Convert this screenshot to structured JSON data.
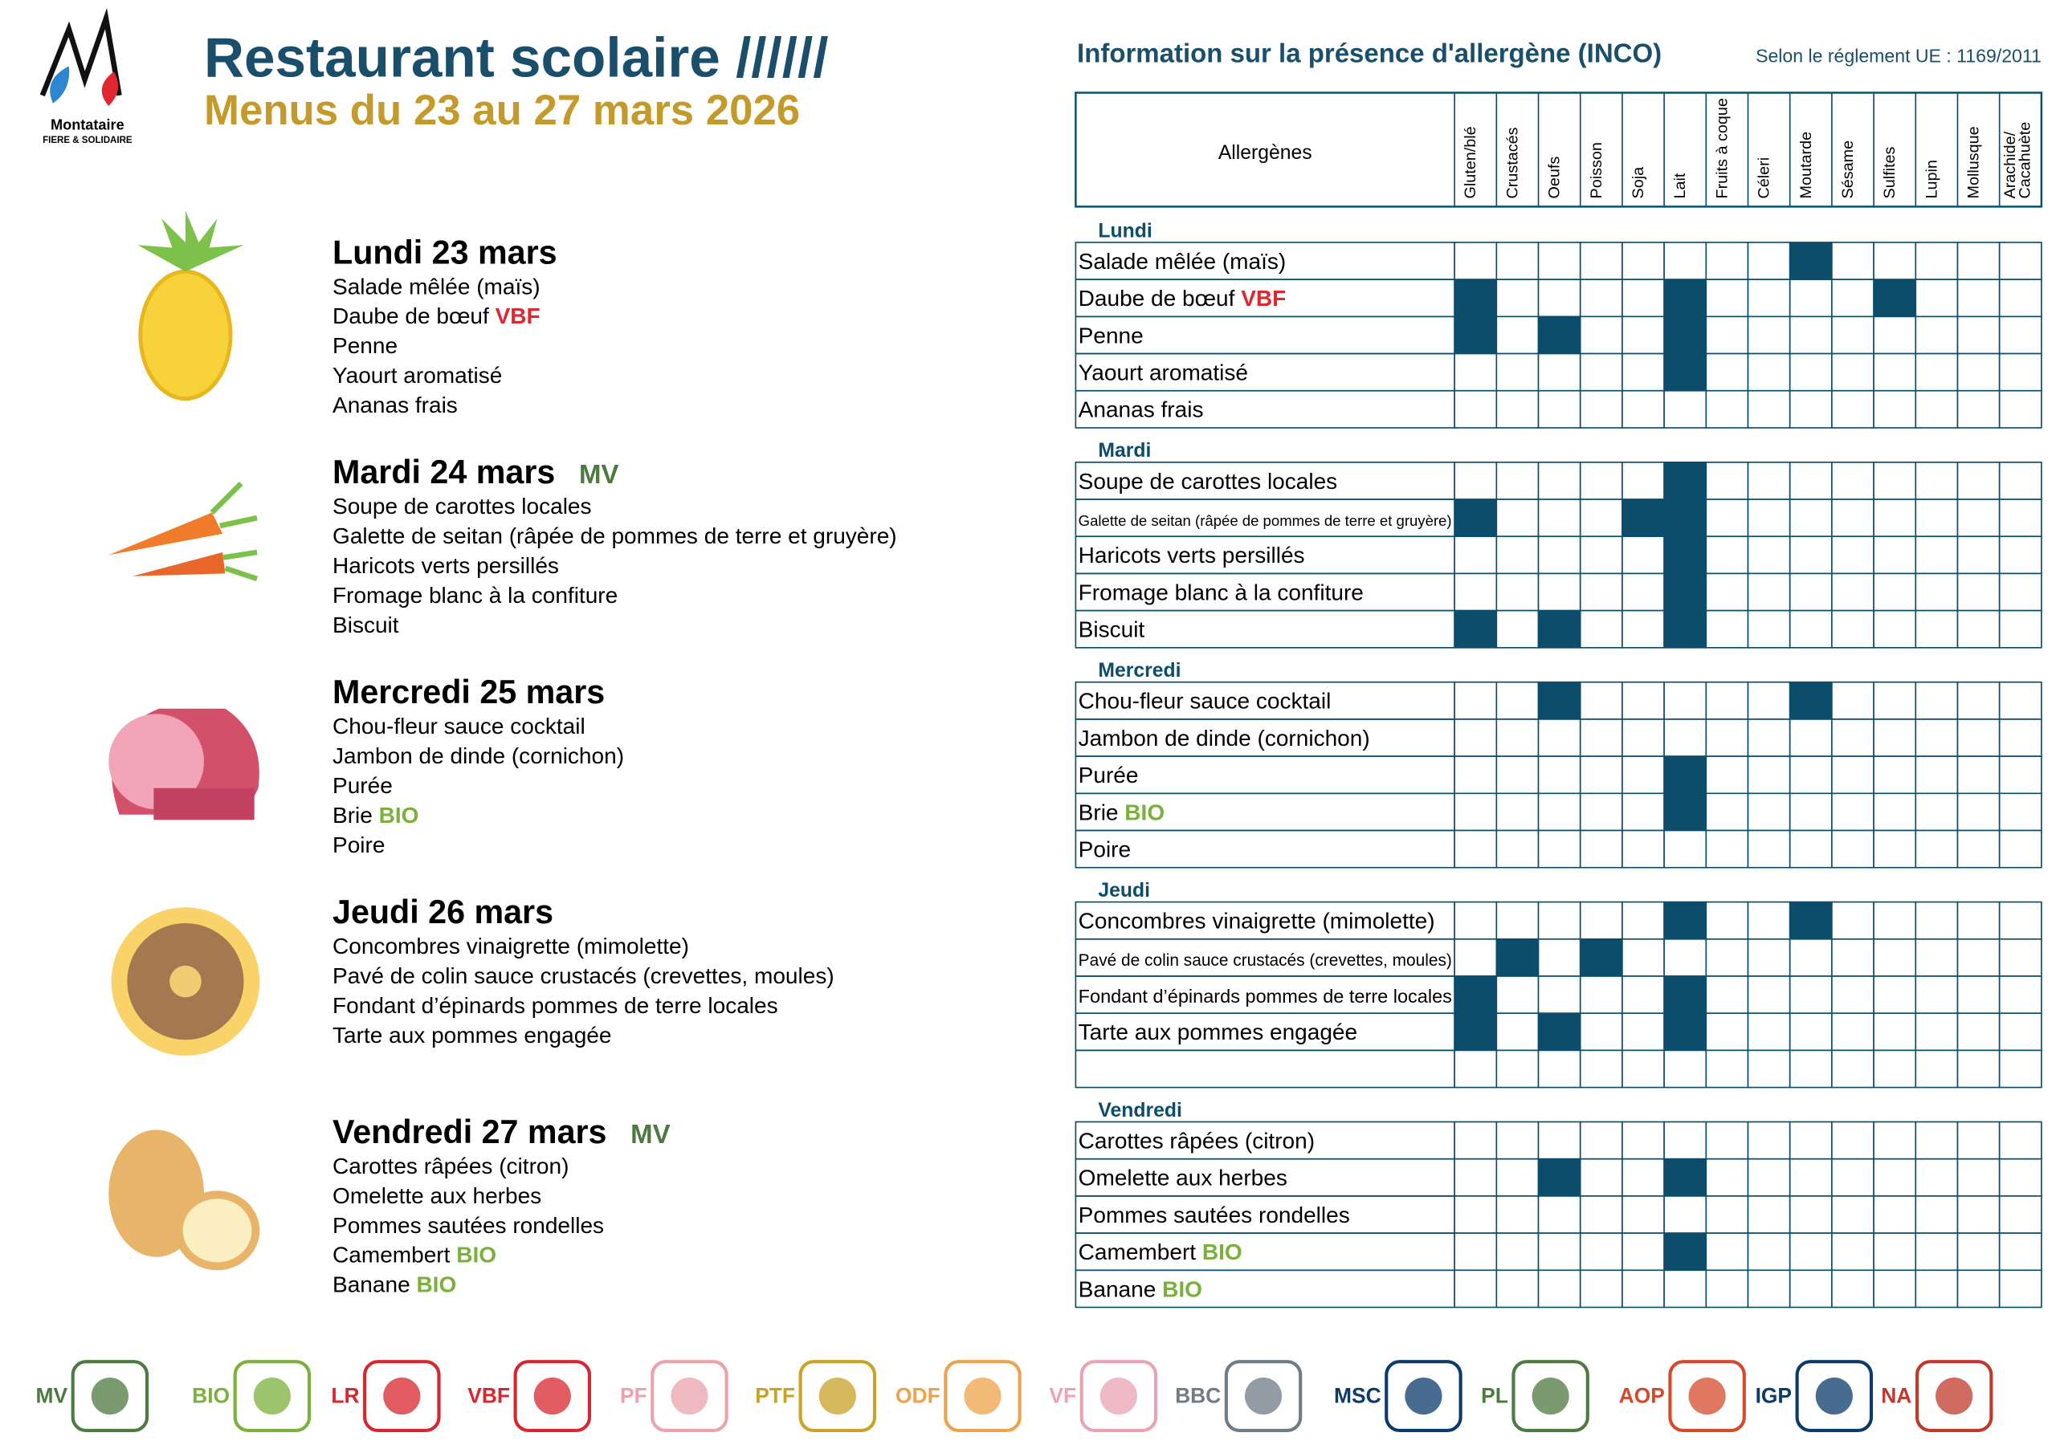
{
  "header": {
    "logo_name": "Montataire",
    "logo_tagline": "FIERE & SOLIDAIRE",
    "title": "Restaurant scolaire //////",
    "subtitle": "Menus du 23 au 27 mars 2026"
  },
  "allergen_table": {
    "title": "Information sur la présence d'allergène (INCO)",
    "regulation": "Selon le réglement UE : 1169/2011",
    "header_label": "Allergènes",
    "allergens": [
      "Gluten/blé",
      "Crustacés",
      "Oeufs",
      "Poisson",
      "Soja",
      "Lait",
      "Fruits à coque",
      "Céleri",
      "Moutarde",
      "Sésame",
      "Sulfites",
      "Lupin",
      "Mollusque",
      "Arachide/\nCacahuète"
    ]
  },
  "label_colors": {
    "VBF": "#e0262e",
    "BIO": "#7bb03c",
    "MV": "#4c7a3f"
  },
  "days": [
    {
      "name": "Lundi",
      "date": "Lundi 23 mars",
      "dishes": [
        {
          "name": "Salade mêlée (maïs)",
          "allergens": [
            0,
            0,
            0,
            0,
            0,
            0,
            0,
            0,
            1,
            0,
            0,
            0,
            0,
            0
          ]
        },
        {
          "name": "Daube de bœuf ",
          "label": "VBF",
          "allergens": [
            1,
            0,
            0,
            0,
            0,
            1,
            0,
            0,
            0,
            0,
            1,
            0,
            0,
            0
          ]
        },
        {
          "name": "Penne",
          "allergens": [
            1,
            0,
            1,
            0,
            0,
            1,
            0,
            0,
            0,
            0,
            0,
            0,
            0,
            0
          ]
        },
        {
          "name": "Yaourt aromatisé",
          "allergens": [
            0,
            0,
            0,
            0,
            0,
            1,
            0,
            0,
            0,
            0,
            0,
            0,
            0,
            0
          ]
        },
        {
          "name": "Ananas frais",
          "allergens": [
            0,
            0,
            0,
            0,
            0,
            0,
            0,
            0,
            0,
            0,
            0,
            0,
            0,
            0
          ]
        }
      ]
    },
    {
      "name": "Mardi",
      "date": "Mardi 24 mars",
      "tag": "MV",
      "dishes": [
        {
          "name": "Soupe de carottes locales",
          "allergens": [
            0,
            0,
            0,
            0,
            0,
            1,
            0,
            0,
            0,
            0,
            0,
            0,
            0,
            0
          ]
        },
        {
          "name": "Galette de seitan (râpée de pommes de terre et gruyère)",
          "allergens": [
            1,
            0,
            0,
            0,
            1,
            1,
            0,
            0,
            0,
            0,
            0,
            0,
            0,
            0
          ]
        },
        {
          "name": "Haricots verts persillés",
          "allergens": [
            0,
            0,
            0,
            0,
            0,
            1,
            0,
            0,
            0,
            0,
            0,
            0,
            0,
            0
          ]
        },
        {
          "name": "Fromage blanc à la confiture",
          "allergens": [
            0,
            0,
            0,
            0,
            0,
            1,
            0,
            0,
            0,
            0,
            0,
            0,
            0,
            0
          ]
        },
        {
          "name": "Biscuit",
          "allergens": [
            1,
            0,
            1,
            0,
            0,
            1,
            0,
            0,
            0,
            0,
            0,
            0,
            0,
            0
          ]
        }
      ]
    },
    {
      "name": "Mercredi",
      "date": "Mercredi 25 mars",
      "dishes": [
        {
          "name": "Chou-fleur sauce cocktail",
          "allergens": [
            0,
            0,
            1,
            0,
            0,
            0,
            0,
            0,
            1,
            0,
            0,
            0,
            0,
            0
          ]
        },
        {
          "name": "Jambon de dinde (cornichon)",
          "allergens": [
            0,
            0,
            0,
            0,
            0,
            0,
            0,
            0,
            0,
            0,
            0,
            0,
            0,
            0
          ]
        },
        {
          "name": "Purée",
          "allergens": [
            0,
            0,
            0,
            0,
            0,
            1,
            0,
            0,
            0,
            0,
            0,
            0,
            0,
            0
          ]
        },
        {
          "name": "Brie ",
          "label": "BIO",
          "allergens": [
            0,
            0,
            0,
            0,
            0,
            1,
            0,
            0,
            0,
            0,
            0,
            0,
            0,
            0
          ]
        },
        {
          "name": "Poire",
          "allergens": [
            0,
            0,
            0,
            0,
            0,
            0,
            0,
            0,
            0,
            0,
            0,
            0,
            0,
            0
          ]
        }
      ]
    },
    {
      "name": "Jeudi",
      "date": "Jeudi 26 mars",
      "dishes": [
        {
          "name": "Concombres vinaigrette (mimolette)",
          "allergens": [
            0,
            0,
            0,
            0,
            0,
            1,
            0,
            0,
            1,
            0,
            0,
            0,
            0,
            0
          ]
        },
        {
          "name": "Pavé de colin sauce crustacés (crevettes, moules)",
          "allergens": [
            0,
            1,
            0,
            1,
            0,
            0,
            0,
            0,
            0,
            0,
            0,
            0,
            0,
            0
          ]
        },
        {
          "name": "Fondant d’épinards pommes de terre locales",
          "allergens": [
            1,
            0,
            0,
            0,
            0,
            1,
            0,
            0,
            0,
            0,
            0,
            0,
            0,
            0
          ]
        },
        {
          "name": "Tarte aux pommes engagée",
          "allergens": [
            1,
            0,
            1,
            0,
            0,
            1,
            0,
            0,
            0,
            0,
            0,
            0,
            0,
            0
          ]
        },
        {
          "name": null,
          "allergens": [
            0,
            0,
            0,
            0,
            0,
            0,
            0,
            0,
            0,
            0,
            0,
            0,
            0,
            0
          ]
        }
      ]
    },
    {
      "name": "Vendredi",
      "date": "Vendredi 27 mars",
      "tag": "MV",
      "dishes": [
        {
          "name": "Carottes râpées (citron)",
          "allergens": [
            0,
            0,
            0,
            0,
            0,
            0,
            0,
            0,
            0,
            0,
            0,
            0,
            0,
            0
          ]
        },
        {
          "name": "Omelette aux herbes",
          "allergens": [
            0,
            0,
            1,
            0,
            0,
            1,
            0,
            0,
            0,
            0,
            0,
            0,
            0,
            0
          ]
        },
        {
          "name": "Pommes sautées rondelles",
          "allergens": [
            0,
            0,
            0,
            0,
            0,
            0,
            0,
            0,
            0,
            0,
            0,
            0,
            0,
            0
          ]
        },
        {
          "name": "Camembert ",
          "label": "BIO",
          "allergens": [
            0,
            0,
            0,
            0,
            0,
            1,
            0,
            0,
            0,
            0,
            0,
            0,
            0,
            0
          ]
        },
        {
          "name": "Banane ",
          "label": "BIO",
          "allergens": [
            0,
            0,
            0,
            0,
            0,
            0,
            0,
            0,
            0,
            0,
            0,
            0,
            0,
            0
          ]
        }
      ]
    }
  ],
  "legend": [
    {
      "code": "MV",
      "color": "#4c7a3f"
    },
    {
      "code": "BIO",
      "color": "#7bb03c"
    },
    {
      "code": "LR",
      "color": "#d8262e"
    },
    {
      "code": "VBF",
      "color": "#d8262e"
    },
    {
      "code": "PF",
      "color": "#eba2ab"
    },
    {
      "code": "PTF",
      "color": "#c9a227"
    },
    {
      "code": "ODF",
      "color": "#eea24a"
    },
    {
      "code": "VF",
      "color": "#eba2b3"
    },
    {
      "code": "BBC",
      "color": "#6f7b85"
    },
    {
      "code": "MSC",
      "color": "#0b3a6b"
    },
    {
      "code": "PL",
      "color": "#4c7a3f"
    },
    {
      "code": "AOP",
      "color": "#d6492b"
    },
    {
      "code": "IGP",
      "color": "#0b3a6b"
    },
    {
      "code": "NA",
      "color": "#c0392b"
    }
  ]
}
